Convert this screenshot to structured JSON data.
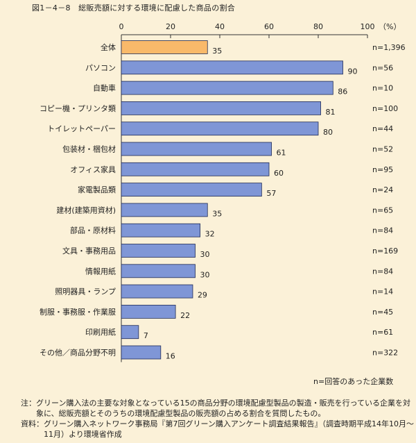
{
  "title": "図1－4－8　総販売額に対する環境に配慮した商品の割合",
  "legend_note": "n=回答のあった企業数",
  "footnotes": [
    {
      "label": "注：",
      "text": "グリーン購入法の主要な対象となっている15の商品分野の環境配慮型製品の製造・販売を行っている企業を対象に、総販売額とそのうちの環境配慮型製品の販売額の占める割合を質問したもの。"
    },
    {
      "label": "資料：",
      "text": "グリーン購入ネットワーク事務局『第7回グリーン購入アンケート調査結果報告』（調査時期平成14年10月～11月）より環境省作成"
    }
  ],
  "colors": {
    "highlight": "#f9b96a",
    "bar": "#7f96d6",
    "bar_border": "#1f2a55",
    "background": "#fbf1d8"
  },
  "chart_data": {
    "type": "bar",
    "orientation": "horizontal",
    "unit_label": "（%）",
    "xlim": [
      0,
      100
    ],
    "ticks": [
      0,
      20,
      40,
      60,
      80,
      100
    ],
    "grid": false,
    "categories": [
      "全体",
      "パソコン",
      "自動車",
      "コピー機・プリンタ類",
      "トイレットペーパー",
      "包装材・梱包材",
      "オフィス家具",
      "家電製品類",
      "建材(建築用資材)",
      "部品・原材料",
      "文具・事務用品",
      "情報用紙",
      "照明器具・ランプ",
      "制服・事務服・作業服",
      "印刷用紙",
      "その他／商品分野不明"
    ],
    "values": [
      35,
      90,
      86,
      81,
      80,
      61,
      60,
      57,
      35,
      32,
      30,
      30,
      29,
      22,
      7,
      16
    ],
    "n_labels": [
      "n=1,396",
      "n=56",
      "n=10",
      "n=100",
      "n=44",
      "n=52",
      "n=95",
      "n=24",
      "n=65",
      "n=84",
      "n=169",
      "n=84",
      "n=14",
      "n=45",
      "n=61",
      "n=322"
    ],
    "highlight_index": 0
  }
}
